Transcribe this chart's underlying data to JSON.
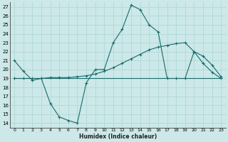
{
  "title": "",
  "xlabel": "Humidex (Indice chaleur)",
  "ylabel": "",
  "bg_color": "#cce8e8",
  "grid_color": "#b0d8d8",
  "line_color": "#1a6b6b",
  "xlim": [
    -0.5,
    23.5
  ],
  "ylim": [
    13.5,
    27.5
  ],
  "xticks": [
    0,
    1,
    2,
    3,
    4,
    5,
    6,
    7,
    8,
    9,
    10,
    11,
    12,
    13,
    14,
    15,
    16,
    17,
    18,
    19,
    20,
    21,
    22,
    23
  ],
  "yticks": [
    14,
    15,
    16,
    17,
    18,
    19,
    20,
    21,
    22,
    23,
    24,
    25,
    26,
    27
  ],
  "line1_x": [
    0,
    1,
    2,
    3,
    4,
    5,
    6,
    7,
    8,
    9,
    10,
    11,
    12,
    13,
    14,
    15,
    16,
    17,
    18,
    19,
    20,
    21,
    22,
    23
  ],
  "line1_y": [
    21.0,
    19.8,
    18.8,
    19.0,
    16.2,
    14.7,
    14.3,
    14.0,
    18.5,
    20.0,
    20.0,
    23.0,
    24.5,
    27.2,
    26.7,
    25.0,
    24.2,
    19.0,
    19.0,
    19.0,
    22.0,
    20.7,
    19.7,
    19.0
  ],
  "line2_x": [
    0,
    1,
    2,
    3,
    4,
    5,
    6,
    7,
    8,
    9,
    10,
    11,
    12,
    13,
    14,
    15,
    16,
    17,
    18,
    19,
    20,
    21,
    22,
    23
  ],
  "line2_y": [
    19.0,
    19.0,
    19.0,
    19.0,
    19.1,
    19.1,
    19.1,
    19.2,
    19.3,
    19.5,
    19.8,
    20.2,
    20.7,
    21.2,
    21.7,
    22.2,
    22.5,
    22.7,
    22.9,
    23.0,
    22.0,
    21.5,
    20.5,
    19.2
  ],
  "line3_x": [
    0,
    23
  ],
  "line3_y": [
    19.0,
    19.0
  ],
  "figsize": [
    3.2,
    2.0
  ],
  "dpi": 100
}
